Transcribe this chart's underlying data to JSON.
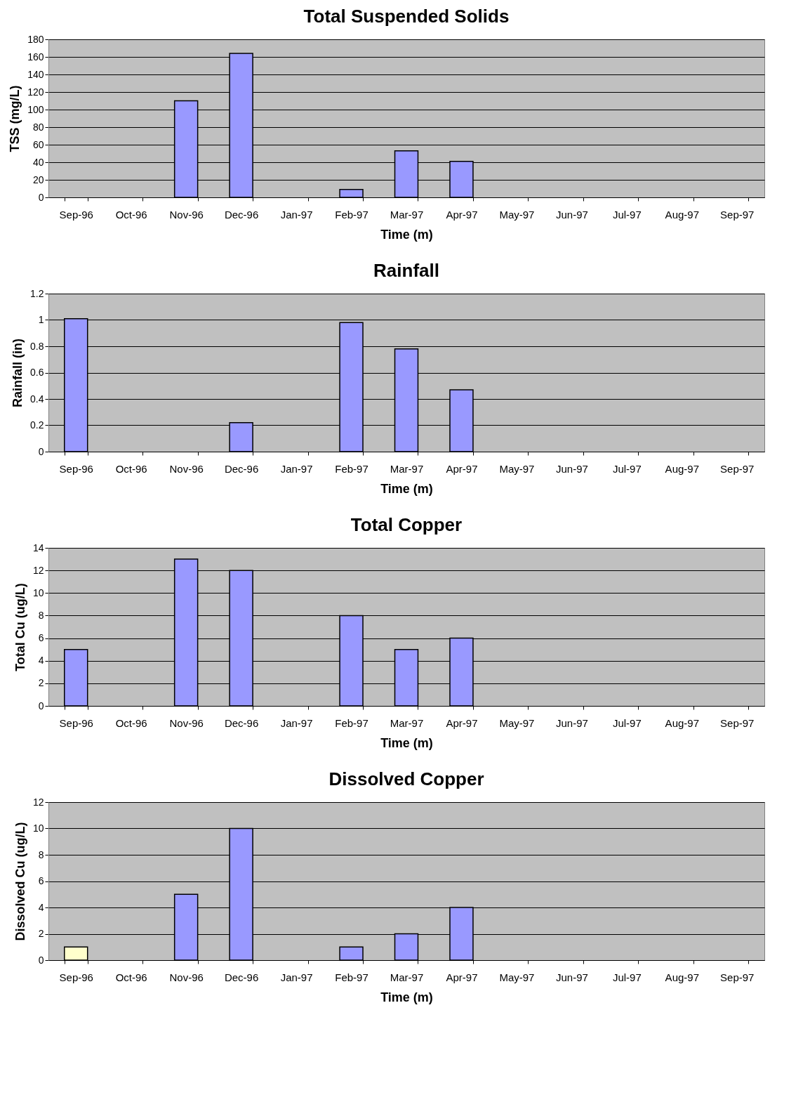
{
  "chart_data": [
    {
      "type": "bar",
      "title": "Total Suspended Solids",
      "xlabel": "Time (m)",
      "ylabel": "TSS (mg/L)",
      "categories": [
        "Sep-96",
        "Oct-96",
        "Nov-96",
        "Dec-96",
        "Jan-97",
        "Feb-97",
        "Mar-97",
        "Apr-97",
        "May-97",
        "Jun-97",
        "Jul-97",
        "Aug-97",
        "Sep-97"
      ],
      "values": [
        null,
        null,
        110,
        164,
        null,
        9,
        53,
        41,
        null,
        null,
        null,
        null,
        null
      ],
      "color": "#9999ff",
      "ylim": [
        0,
        180
      ],
      "yticks": [
        0,
        20,
        40,
        60,
        80,
        100,
        120,
        140,
        160,
        180
      ],
      "grid": "y"
    },
    {
      "type": "bar",
      "title": "Rainfall",
      "xlabel": "Time (m)",
      "ylabel": "Rainfall (in)",
      "categories": [
        "Sep-96",
        "Oct-96",
        "Nov-96",
        "Dec-96",
        "Jan-97",
        "Feb-97",
        "Mar-97",
        "Apr-97",
        "May-97",
        "Jun-97",
        "Jul-97",
        "Aug-97",
        "Sep-97"
      ],
      "values": [
        1.01,
        null,
        null,
        0.22,
        null,
        0.98,
        0.78,
        0.47,
        null,
        null,
        null,
        null,
        null
      ],
      "color": "#9999ff",
      "ylim": [
        0,
        1.2
      ],
      "yticks": [
        0,
        0.2,
        0.4,
        0.6,
        0.8,
        1,
        1.2
      ],
      "grid": "y"
    },
    {
      "type": "bar",
      "title": "Total Copper",
      "xlabel": "Time (m)",
      "ylabel": "Total Cu (ug/L)",
      "categories": [
        "Sep-96",
        "Oct-96",
        "Nov-96",
        "Dec-96",
        "Jan-97",
        "Feb-97",
        "Mar-97",
        "Apr-97",
        "May-97",
        "Jun-97",
        "Jul-97",
        "Aug-97",
        "Sep-97"
      ],
      "values": [
        5,
        null,
        13,
        12,
        null,
        8,
        5,
        6,
        null,
        null,
        null,
        null,
        null
      ],
      "color": "#9999ff",
      "ylim": [
        0,
        14
      ],
      "yticks": [
        0,
        2,
        4,
        6,
        8,
        10,
        12,
        14
      ],
      "grid": "y"
    },
    {
      "type": "bar",
      "title": "Dissolved Copper",
      "xlabel": "Time (m)",
      "ylabel": "Dissolved Cu (ug/L)",
      "categories": [
        "Sep-96",
        "Oct-96",
        "Nov-96",
        "Dec-96",
        "Jan-97",
        "Feb-97",
        "Mar-97",
        "Apr-97",
        "May-97",
        "Jun-97",
        "Jul-97",
        "Aug-97",
        "Sep-97"
      ],
      "values": [
        1,
        null,
        5,
        10,
        null,
        1,
        2,
        4,
        null,
        null,
        null,
        null,
        null
      ],
      "colors": [
        "#ffffcc",
        "#9999ff",
        "#9999ff",
        "#9999ff",
        "#9999ff",
        "#9999ff",
        "#9999ff",
        "#9999ff",
        "#9999ff",
        "#9999ff",
        "#9999ff",
        "#9999ff",
        "#9999ff"
      ],
      "ylim": [
        0,
        12
      ],
      "yticks": [
        0,
        2,
        4,
        6,
        8,
        10,
        12
      ],
      "grid": "y"
    }
  ]
}
